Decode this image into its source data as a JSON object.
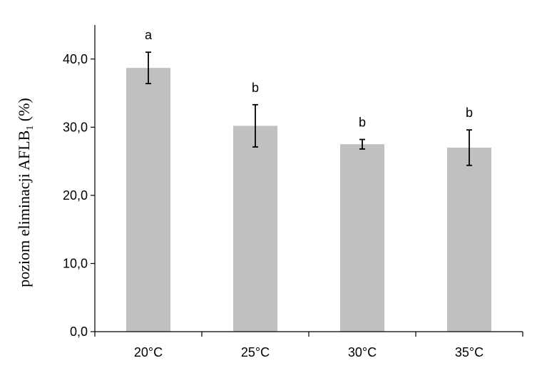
{
  "chart_data": {
    "type": "bar",
    "title": "",
    "xlabel": "",
    "ylabel": {
      "text": "poziom eliminacji AFLB",
      "subscript": "1",
      "suffix": " (%)"
    },
    "categories": [
      "20°C",
      "25°C",
      "30°C",
      "35°C"
    ],
    "values": [
      38.7,
      30.2,
      27.5,
      27.0
    ],
    "errors": [
      2.3,
      3.1,
      0.7,
      2.6
    ],
    "significance_labels": [
      "a",
      "b",
      "b",
      "b"
    ],
    "ylim": [
      0,
      45
    ],
    "yticks": [
      0,
      10,
      20,
      30,
      40
    ],
    "ytick_labels": [
      "0,0",
      "10,0",
      "20,0",
      "30,0",
      "40,0"
    ],
    "bar_color": "#c0c0c0",
    "grid": false,
    "legend": "none"
  }
}
